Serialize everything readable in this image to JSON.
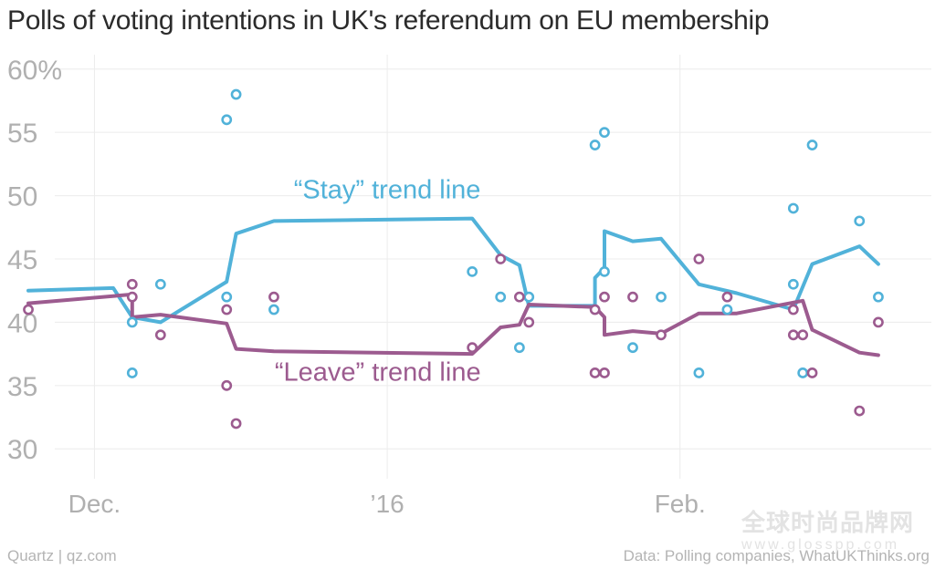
{
  "title": "Polls of voting intentions in UK's referendum on EU membership",
  "footer": {
    "credit": "Quartz | qz.com",
    "source": "Data: Polling companies, WhatUKThinks.org"
  },
  "watermark": {
    "chinese": "全球时尚品牌网",
    "url": "www.glosspp.com"
  },
  "chart_data": {
    "type": "scatter",
    "title": "Polls of voting intentions in UK's referendum on EU membership",
    "xlabel": "",
    "ylabel": "",
    "xlim": [
      "2015-11-21",
      "2016-02-28"
    ],
    "ylim": [
      28,
      62
    ],
    "yticks": [
      {
        "value": 30,
        "label": "30"
      },
      {
        "value": 35,
        "label": "35"
      },
      {
        "value": 40,
        "label": "40"
      },
      {
        "value": 45,
        "label": "45"
      },
      {
        "value": 50,
        "label": "50"
      },
      {
        "value": 55,
        "label": "55"
      },
      {
        "value": 60,
        "label": "60%"
      }
    ],
    "xticks": [
      {
        "date": "2015-12-01",
        "label": "Dec."
      },
      {
        "date": "2016-01-01",
        "label": "’16"
      },
      {
        "date": "2016-02-01",
        "label": "Feb."
      }
    ],
    "grid": true,
    "colors": {
      "stay": "#51b2d9",
      "leave": "#9c5b8f",
      "grid": "#ececec",
      "tick": "#b0b0b0"
    },
    "annotations": [
      {
        "text": "“Stay” trend line",
        "series": "stay",
        "anchor": {
          "date": "2016-01-01",
          "value": 49.8
        }
      },
      {
        "text": "“Leave” trend line",
        "series": "leave",
        "anchor": {
          "date": "2015-12-31",
          "value": 35.4
        }
      }
    ],
    "series": [
      {
        "key": "stay",
        "trend": [
          [
            "2015-11-24",
            42.5
          ],
          [
            "2015-12-03",
            42.7
          ],
          [
            "2015-12-05",
            40.4
          ],
          [
            "2015-12-08",
            40.0
          ],
          [
            "2015-12-15",
            43.2
          ],
          [
            "2015-12-16",
            47.0
          ],
          [
            "2015-12-20",
            48.0
          ],
          [
            "2016-01-10",
            48.2
          ],
          [
            "2016-01-13",
            45.3
          ],
          [
            "2016-01-15",
            44.5
          ],
          [
            "2016-01-16",
            41.3
          ],
          [
            "2016-01-23",
            41.3
          ],
          [
            "2016-01-23",
            43.5
          ],
          [
            "2016-01-24",
            44.3
          ],
          [
            "2016-01-24",
            47.2
          ],
          [
            "2016-01-27",
            46.4
          ],
          [
            "2016-01-30",
            46.6
          ],
          [
            "2016-02-03",
            43.0
          ],
          [
            "2016-02-07",
            42.3
          ],
          [
            "2016-02-13",
            41.0
          ],
          [
            "2016-02-15",
            44.6
          ],
          [
            "2016-02-20",
            46.0
          ],
          [
            "2016-02-22",
            44.6
          ]
        ],
        "points": [
          [
            "2015-12-05",
            40
          ],
          [
            "2015-12-05",
            36
          ],
          [
            "2015-12-08",
            43
          ],
          [
            "2015-12-15",
            56
          ],
          [
            "2015-12-16",
            58
          ],
          [
            "2015-12-15",
            42
          ],
          [
            "2015-12-20",
            41
          ],
          [
            "2016-01-10",
            44
          ],
          [
            "2016-01-13",
            42
          ],
          [
            "2016-01-15",
            38
          ],
          [
            "2016-01-16",
            42
          ],
          [
            "2016-01-23",
            54
          ],
          [
            "2016-01-24",
            55
          ],
          [
            "2016-01-24",
            44
          ],
          [
            "2016-01-27",
            38
          ],
          [
            "2016-01-30",
            42
          ],
          [
            "2016-02-03",
            36
          ],
          [
            "2016-02-06",
            41
          ],
          [
            "2016-02-13",
            49
          ],
          [
            "2016-02-13",
            43
          ],
          [
            "2016-02-14",
            36
          ],
          [
            "2016-02-15",
            54
          ],
          [
            "2016-02-20",
            48
          ],
          [
            "2016-02-22",
            42
          ]
        ]
      },
      {
        "key": "leave",
        "trend": [
          [
            "2015-11-24",
            41.5
          ],
          [
            "2015-12-05",
            42.2
          ],
          [
            "2015-12-05",
            40.4
          ],
          [
            "2015-12-08",
            40.6
          ],
          [
            "2015-12-15",
            39.9
          ],
          [
            "2015-12-16",
            37.9
          ],
          [
            "2015-12-20",
            37.7
          ],
          [
            "2016-01-10",
            37.5
          ],
          [
            "2016-01-13",
            39.6
          ],
          [
            "2016-01-15",
            39.8
          ],
          [
            "2016-01-16",
            41.4
          ],
          [
            "2016-01-23",
            41.2
          ],
          [
            "2016-01-24",
            40.4
          ],
          [
            "2016-01-24",
            39.0
          ],
          [
            "2016-01-27",
            39.3
          ],
          [
            "2016-01-30",
            39.1
          ],
          [
            "2016-02-03",
            40.7
          ],
          [
            "2016-02-07",
            40.7
          ],
          [
            "2016-02-14",
            41.7
          ],
          [
            "2016-02-15",
            39.4
          ],
          [
            "2016-02-20",
            37.6
          ],
          [
            "2016-02-22",
            37.4
          ]
        ],
        "points": [
          [
            "2015-11-24",
            41
          ],
          [
            "2015-12-05",
            43
          ],
          [
            "2015-12-05",
            42
          ],
          [
            "2015-12-08",
            39
          ],
          [
            "2015-12-15",
            41
          ],
          [
            "2015-12-15",
            35
          ],
          [
            "2015-12-16",
            32
          ],
          [
            "2015-12-20",
            42
          ],
          [
            "2016-01-10",
            38
          ],
          [
            "2016-01-13",
            45
          ],
          [
            "2016-01-15",
            42
          ],
          [
            "2016-01-16",
            40
          ],
          [
            "2016-01-23",
            41
          ],
          [
            "2016-01-23",
            36
          ],
          [
            "2016-01-24",
            36
          ],
          [
            "2016-01-24",
            42
          ],
          [
            "2016-01-27",
            42
          ],
          [
            "2016-01-30",
            39
          ],
          [
            "2016-02-03",
            45
          ],
          [
            "2016-02-06",
            42
          ],
          [
            "2016-02-13",
            41
          ],
          [
            "2016-02-13",
            39
          ],
          [
            "2016-02-14",
            39
          ],
          [
            "2016-02-15",
            36
          ],
          [
            "2016-02-20",
            33
          ],
          [
            "2016-02-22",
            40
          ]
        ]
      }
    ]
  }
}
